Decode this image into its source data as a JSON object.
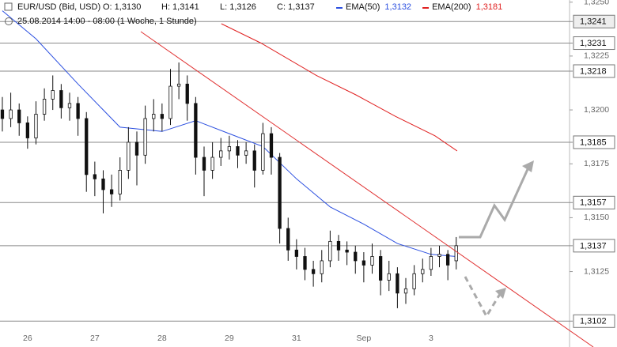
{
  "chart_data": {
    "type": "candlestick",
    "header": {
      "instrument": "EUR/USD (Bid, USD)",
      "open": "O: 1,3130",
      "high": "H: 1,3141",
      "low": "L: 1,3126",
      "close": "C: 1,3137",
      "period": "25.08.2014 14:00 - 08:00 (1 Woche, 1 Stunde)"
    },
    "xlim": [
      -0.41,
      8.06
    ],
    "xticks": [
      {
        "value": 0,
        "label": "26"
      },
      {
        "value": 1,
        "label": "27"
      },
      {
        "value": 2,
        "label": "28"
      },
      {
        "value": 3,
        "label": "29"
      },
      {
        "value": 4,
        "label": "31"
      },
      {
        "value": 5,
        "label": "Sep"
      },
      {
        "value": 6,
        "label": "3"
      }
    ],
    "ylim": [
      1.309,
      1.3251
    ],
    "yticks": [
      {
        "value": 1.325,
        "label": "1,3250"
      },
      {
        "value": 1.3225,
        "label": "1,3225"
      },
      {
        "value": 1.32,
        "label": "1,3200"
      },
      {
        "value": 1.3175,
        "label": "1,3175"
      },
      {
        "value": 1.315,
        "label": "1,3150"
      },
      {
        "value": 1.3125,
        "label": "1,3125"
      }
    ],
    "levels": [
      {
        "value": 1.3241,
        "label": "1,3241"
      },
      {
        "value": 1.3231,
        "label": "1,3231"
      },
      {
        "value": 1.3218,
        "label": "1,3218"
      },
      {
        "value": 1.3185,
        "label": "1,3185"
      },
      {
        "value": 1.3157,
        "label": "1,3157"
      },
      {
        "value": 1.3137,
        "label": "1,3137"
      },
      {
        "value": 1.3102,
        "label": "1,3102"
      }
    ],
    "candles": {
      "x": [
        -0.375,
        -0.25,
        -0.125,
        0,
        0.125,
        0.25,
        0.375,
        0.5,
        0.625,
        0.75,
        0.875,
        1,
        1.125,
        1.25,
        1.375,
        1.5,
        1.625,
        1.75,
        1.875,
        2,
        2.125,
        2.25,
        2.375,
        2.5,
        2.625,
        2.75,
        2.875,
        3,
        3.125,
        3.25,
        3.375,
        3.5,
        3.625,
        3.75,
        3.875,
        4,
        4.125,
        4.25,
        4.375,
        4.5,
        4.625,
        4.75,
        4.875,
        5,
        5.125,
        5.25,
        5.375,
        5.5,
        5.625,
        5.75,
        5.875,
        6,
        6.125,
        6.25,
        6.375
      ],
      "open": [
        1.32,
        1.3196,
        1.32,
        1.3194,
        1.3187,
        1.3198,
        1.3205,
        1.3209,
        1.3201,
        1.3203,
        1.3196,
        1.317,
        1.3168,
        1.3163,
        1.3161,
        1.3172,
        1.3185,
        1.3179,
        1.3196,
        1.3198,
        1.3196,
        1.3211,
        1.3212,
        1.3203,
        1.3178,
        1.3172,
        1.3178,
        1.3181,
        1.3183,
        1.3179,
        1.3181,
        1.3172,
        1.3189,
        1.3178,
        1.3145,
        1.3135,
        1.3132,
        1.3126,
        1.3124,
        1.313,
        1.3139,
        1.3135,
        1.3134,
        1.313,
        1.3128,
        1.3132,
        1.3121,
        1.3124,
        1.3115,
        1.3117,
        1.3124,
        1.3126,
        1.3132,
        1.3133,
        1.313
      ],
      "high": [
        1.3206,
        1.3208,
        1.3203,
        1.3197,
        1.3204,
        1.321,
        1.3216,
        1.3212,
        1.3208,
        1.3206,
        1.3199,
        1.3176,
        1.3172,
        1.317,
        1.3178,
        1.3192,
        1.319,
        1.3202,
        1.3205,
        1.3203,
        1.3219,
        1.3222,
        1.3216,
        1.3206,
        1.3183,
        1.3185,
        1.3187,
        1.3188,
        1.3186,
        1.3185,
        1.3184,
        1.3194,
        1.3192,
        1.318,
        1.315,
        1.314,
        1.3136,
        1.313,
        1.3135,
        1.3144,
        1.3142,
        1.3139,
        1.3137,
        1.3134,
        1.3138,
        1.3135,
        1.313,
        1.3127,
        1.3122,
        1.3128,
        1.3131,
        1.3136,
        1.3137,
        1.3135,
        1.3141
      ],
      "low": [
        1.319,
        1.3192,
        1.3188,
        1.3182,
        1.3184,
        1.3195,
        1.32,
        1.3196,
        1.3195,
        1.3188,
        1.3162,
        1.316,
        1.3152,
        1.3155,
        1.3158,
        1.3168,
        1.3165,
        1.3175,
        1.319,
        1.319,
        1.3193,
        1.3205,
        1.3195,
        1.317,
        1.316,
        1.3168,
        1.3174,
        1.3177,
        1.3173,
        1.3175,
        1.3164,
        1.317,
        1.317,
        1.3138,
        1.313,
        1.3126,
        1.3121,
        1.3118,
        1.312,
        1.3127,
        1.313,
        1.3128,
        1.3124,
        1.312,
        1.3124,
        1.3114,
        1.3116,
        1.3108,
        1.311,
        1.3114,
        1.312,
        1.3123,
        1.3127,
        1.3121,
        1.3126
      ],
      "close": [
        1.3196,
        1.32,
        1.3194,
        1.3187,
        1.3198,
        1.3205,
        1.3209,
        1.3201,
        1.3203,
        1.3196,
        1.317,
        1.3168,
        1.3163,
        1.3161,
        1.3172,
        1.3185,
        1.3179,
        1.3196,
        1.3198,
        1.3196,
        1.3211,
        1.3212,
        1.3203,
        1.3178,
        1.3172,
        1.3178,
        1.3181,
        1.3183,
        1.3179,
        1.3181,
        1.3172,
        1.3189,
        1.3178,
        1.3145,
        1.3135,
        1.3132,
        1.3126,
        1.3124,
        1.313,
        1.3139,
        1.3135,
        1.3134,
        1.313,
        1.3128,
        1.3132,
        1.3121,
        1.3124,
        1.3115,
        1.3117,
        1.3124,
        1.3126,
        1.3132,
        1.3133,
        1.3128,
        1.3137
      ]
    },
    "series": [
      {
        "name": "EMA(50)",
        "color": "#2b4fe0",
        "last_label": "1,3132",
        "x": [
          -0.375,
          0.125,
          0.75,
          1.375,
          2,
          2.5,
          3,
          3.5,
          4,
          4.5,
          5,
          5.5,
          6,
          6.375
        ],
        "values": [
          1.3246,
          1.3233,
          1.3212,
          1.3192,
          1.319,
          1.3195,
          1.3189,
          1.3183,
          1.3168,
          1.3155,
          1.3147,
          1.3138,
          1.3133,
          1.3132
        ]
      },
      {
        "name": "EMA(200)",
        "color": "#e02020",
        "last_label": "1,3181",
        "x": [
          2.882,
          3.471,
          4.294,
          4.882,
          5.471,
          6.059,
          6.388
        ],
        "values": [
          1.324,
          1.3231,
          1.3216,
          1.3207,
          1.3197,
          1.3188,
          1.3181
        ]
      }
    ]
  }
}
